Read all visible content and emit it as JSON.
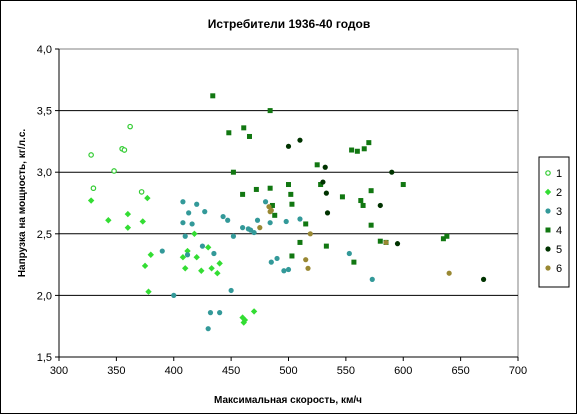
{
  "chart_data": {
    "type": "scatter",
    "title": "Истребители 1936-40 годов",
    "xlabel": "Максимальная скорость, км/ч",
    "ylabel": "Напрузка на мощность, кг/л.с.",
    "xlim": [
      300,
      700
    ],
    "ylim": [
      1.5,
      4.0
    ],
    "x_ticks": [
      "300",
      "350",
      "400",
      "450",
      "500",
      "550",
      "600",
      "650",
      "700"
    ],
    "y_ticks": [
      "1,5",
      "2,0",
      "2,5",
      "3,0",
      "3,5",
      "4,0"
    ],
    "grid": "horizontal",
    "legend_position": "right",
    "series": [
      {
        "name": "1",
        "color": "#33cc33",
        "marker": "hollow-circle",
        "points": [
          [
            328,
            3.14
          ],
          [
            330,
            2.87
          ],
          [
            348,
            3.01
          ],
          [
            355,
            3.19
          ],
          [
            357,
            3.18
          ],
          [
            362,
            3.37
          ],
          [
            372,
            2.84
          ]
        ]
      },
      {
        "name": "2",
        "color": "#33dd33",
        "marker": "diamond",
        "points": [
          [
            328,
            2.77
          ],
          [
            343,
            2.61
          ],
          [
            360,
            2.66
          ],
          [
            360,
            2.55
          ],
          [
            373,
            2.6
          ],
          [
            375,
            2.24
          ],
          [
            377,
            2.79
          ],
          [
            378,
            2.03
          ],
          [
            380,
            2.33
          ],
          [
            408,
            2.31
          ],
          [
            410,
            2.22
          ],
          [
            412,
            2.36
          ],
          [
            418,
            2.5
          ],
          [
            420,
            2.31
          ],
          [
            424,
            2.2
          ],
          [
            430,
            2.39
          ],
          [
            433,
            2.22
          ],
          [
            438,
            2.18
          ],
          [
            440,
            2.26
          ],
          [
            460,
            1.82
          ],
          [
            461,
            1.78
          ],
          [
            462,
            1.8
          ],
          [
            470,
            1.87
          ]
        ]
      },
      {
        "name": "3",
        "color": "#339999",
        "marker": "circle",
        "points": [
          [
            390,
            2.36
          ],
          [
            400,
            2.0
          ],
          [
            408,
            2.76
          ],
          [
            408,
            2.59
          ],
          [
            410,
            2.48
          ],
          [
            412,
            2.33
          ],
          [
            413,
            2.67
          ],
          [
            416,
            2.58
          ],
          [
            420,
            2.74
          ],
          [
            425,
            2.4
          ],
          [
            427,
            2.68
          ],
          [
            430,
            1.73
          ],
          [
            432,
            1.86
          ],
          [
            435,
            2.34
          ],
          [
            440,
            1.86
          ],
          [
            443,
            2.64
          ],
          [
            447,
            2.61
          ],
          [
            450,
            2.04
          ],
          [
            452,
            2.48
          ],
          [
            460,
            2.55
          ],
          [
            465,
            2.54
          ],
          [
            467,
            2.53
          ],
          [
            470,
            2.51
          ],
          [
            473,
            2.61
          ],
          [
            480,
            2.76
          ],
          [
            484,
            2.59
          ],
          [
            485,
            2.27
          ],
          [
            490,
            2.3
          ],
          [
            496,
            2.2
          ],
          [
            498,
            2.6
          ],
          [
            500,
            2.21
          ],
          [
            510,
            2.62
          ],
          [
            553,
            2.34
          ],
          [
            573,
            2.13
          ]
        ]
      },
      {
        "name": "4",
        "color": "#117711",
        "marker": "square",
        "points": [
          [
            434,
            3.62
          ],
          [
            448,
            3.32
          ],
          [
            452,
            3.0
          ],
          [
            460,
            2.82
          ],
          [
            461,
            3.36
          ],
          [
            466,
            3.29
          ],
          [
            472,
            2.86
          ],
          [
            484,
            3.5
          ],
          [
            484,
            2.87
          ],
          [
            486,
            2.73
          ],
          [
            488,
            2.65
          ],
          [
            500,
            2.9
          ],
          [
            502,
            2.82
          ],
          [
            503,
            2.74
          ],
          [
            503,
            2.32
          ],
          [
            510,
            2.43
          ],
          [
            515,
            2.58
          ],
          [
            525,
            3.06
          ],
          [
            528,
            2.9
          ],
          [
            533,
            2.4
          ],
          [
            547,
            2.8
          ],
          [
            555,
            3.18
          ],
          [
            557,
            2.27
          ],
          [
            560,
            3.17
          ],
          [
            563,
            2.77
          ],
          [
            565,
            2.73
          ],
          [
            566,
            3.19
          ],
          [
            570,
            3.24
          ],
          [
            572,
            2.57
          ],
          [
            572,
            2.85
          ],
          [
            580,
            2.44
          ],
          [
            585,
            2.43
          ],
          [
            600,
            2.9
          ],
          [
            635,
            2.46
          ],
          [
            638,
            2.48
          ]
        ]
      },
      {
        "name": "5",
        "color": "#003300",
        "marker": "circle",
        "points": [
          [
            500,
            3.21
          ],
          [
            510,
            3.26
          ],
          [
            530,
            2.92
          ],
          [
            532,
            3.04
          ],
          [
            533,
            2.83
          ],
          [
            534,
            2.67
          ],
          [
            580,
            2.73
          ],
          [
            590,
            3.0
          ],
          [
            595,
            2.42
          ],
          [
            670,
            2.13
          ]
        ]
      },
      {
        "name": "6",
        "color": "#998833",
        "marker": "circle",
        "points": [
          [
            475,
            2.55
          ],
          [
            483,
            2.72
          ],
          [
            484,
            2.68
          ],
          [
            485,
            2.69
          ],
          [
            515,
            2.29
          ],
          [
            517,
            2.22
          ],
          [
            519,
            2.5
          ],
          [
            585,
            2.43
          ],
          [
            640,
            2.18
          ]
        ]
      }
    ]
  }
}
